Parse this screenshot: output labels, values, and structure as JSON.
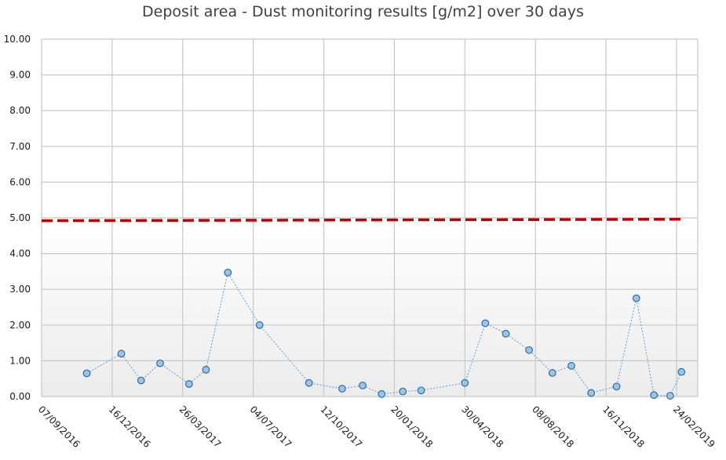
{
  "chart_data": {
    "type": "line",
    "title": "Deposit area - Dust monitoring results [g/m2] over 30 days",
    "xlabel": "",
    "ylabel": "",
    "x_axis_type": "date",
    "x_ticks": [
      "07/09/2016",
      "16/12/2016",
      "26/03/2017",
      "04/07/2017",
      "12/10/2017",
      "20/01/2018",
      "30/04/2018",
      "08/08/2018",
      "16/11/2018",
      "24/02/2019"
    ],
    "y_ticks": [
      "0.00",
      "1.00",
      "2.00",
      "3.00",
      "4.00",
      "5.00",
      "6.00",
      "7.00",
      "8.00",
      "9.00",
      "10.00"
    ],
    "xlim": [
      "07/09/2016",
      "24/02/2019"
    ],
    "ylim": [
      0,
      10
    ],
    "grid": true,
    "series": [
      {
        "style": "dotted line with circle markers",
        "color": "#5b9bd5",
        "x": [
          "10/11/2016",
          "29/12/2016",
          "26/01/2017",
          "22/02/2017",
          "04/04/2017",
          "28/04/2017",
          "29/05/2017",
          "13/07/2017",
          "21/09/2017",
          "07/11/2017",
          "06/12/2017",
          "02/01/2018",
          "01/02/2018",
          "27/02/2018",
          "30/04/2018",
          "29/05/2018",
          "27/06/2018",
          "30/07/2018",
          "01/09/2018",
          "28/09/2018",
          "26/10/2018",
          "01/12/2018",
          "29/12/2018",
          "23/01/2019",
          "15/02/2019",
          "03/03/2019"
        ],
        "values": [
          0.65,
          1.2,
          0.45,
          0.93,
          0.35,
          0.75,
          3.47,
          2.0,
          0.38,
          0.22,
          0.31,
          0.07,
          0.14,
          0.17,
          0.38,
          2.05,
          1.76,
          1.3,
          0.66,
          0.86,
          0.1,
          0.28,
          2.75,
          0.04,
          0.02,
          0.69
        ]
      },
      {
        "style": "dashed red limit line",
        "color": "#c00000",
        "x": [
          "07/09/2016",
          "03/03/2019"
        ],
        "values": [
          4.92,
          4.96
        ]
      }
    ]
  }
}
